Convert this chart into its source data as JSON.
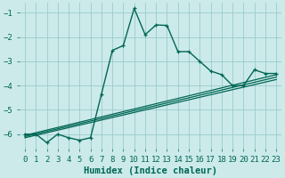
{
  "xlabel": "Humidex (Indice chaleur)",
  "bg_color": "#cceaea",
  "grid_color": "#99cccc",
  "line_color": "#006655",
  "xlim": [
    -0.5,
    23.5
  ],
  "ylim": [
    -6.6,
    -0.6
  ],
  "yticks": [
    -6,
    -5,
    -4,
    -3,
    -2,
    -1
  ],
  "xticks": [
    0,
    1,
    2,
    3,
    4,
    5,
    6,
    7,
    8,
    9,
    10,
    11,
    12,
    13,
    14,
    15,
    16,
    17,
    18,
    19,
    20,
    21,
    22,
    23
  ],
  "main_x": [
    0,
    1,
    2,
    3,
    4,
    5,
    6,
    7,
    8,
    9,
    10,
    11,
    12,
    13,
    14,
    15,
    16,
    17,
    18,
    19,
    20,
    21,
    22,
    23
  ],
  "main_y": [
    -6.0,
    -6.0,
    -6.35,
    -6.0,
    -6.15,
    -6.25,
    -6.15,
    -4.35,
    -2.55,
    -2.35,
    -0.82,
    -1.9,
    -1.5,
    -1.52,
    -2.6,
    -2.6,
    -3.0,
    -3.4,
    -3.55,
    -4.0,
    -4.0,
    -3.35,
    -3.5,
    -3.5
  ],
  "line1_x": [
    0,
    23
  ],
  "line1_y": [
    -6.05,
    -3.55
  ],
  "line2_x": [
    0,
    23
  ],
  "line2_y": [
    -6.1,
    -3.65
  ],
  "line3_x": [
    0,
    23
  ],
  "line3_y": [
    -6.15,
    -3.75
  ],
  "tick_fontsize": 6.5,
  "xlabel_fontsize": 7.5
}
